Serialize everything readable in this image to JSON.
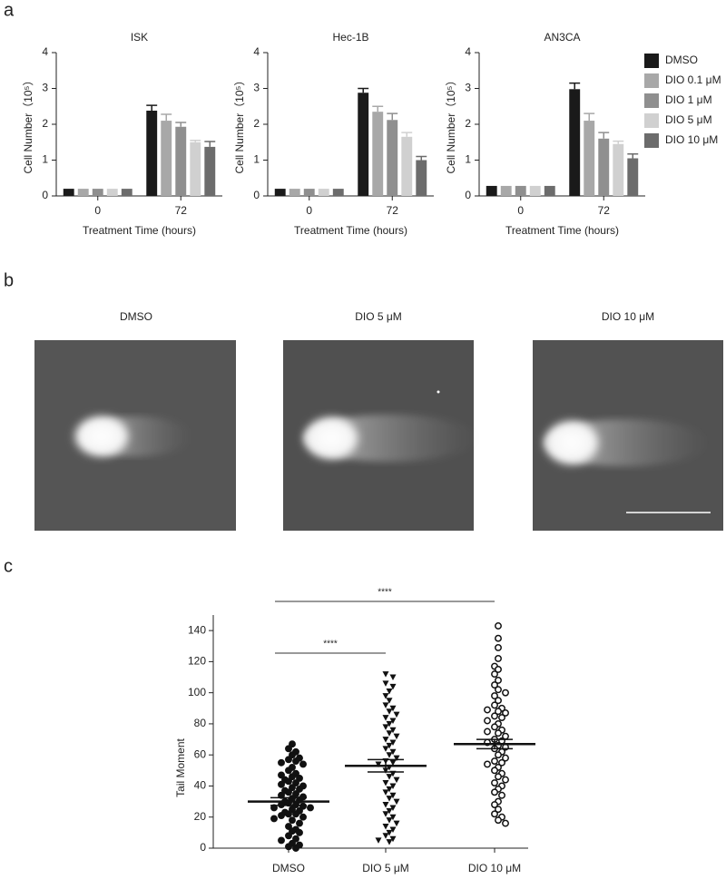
{
  "panel_labels": [
    "a",
    "b",
    "c"
  ],
  "legend": [
    {
      "name": "DMSO",
      "color": "#1a1a1a"
    },
    {
      "name": "DIO 0.1 μM",
      "color": "#a8a8a8"
    },
    {
      "name": "DIO 1 μM",
      "color": "#8f8f8f"
    },
    {
      "name": "DIO 5 μM",
      "color": "#d0d0d0"
    },
    {
      "name": "DIO 10 μM",
      "color": "#6c6c6c"
    }
  ],
  "chart_data": [
    {
      "type": "bar",
      "title": "ISK",
      "xlabel": "Treatment Time (hours)",
      "ylabel": "Cell Number（10⁵）",
      "categories": [
        "0",
        "72"
      ],
      "ylim": [
        0,
        4
      ],
      "yticks": [
        0,
        1,
        2,
        3,
        4
      ],
      "series": [
        {
          "values": [
            0.2,
            2.38
          ],
          "errors": [
            null,
            0.15
          ]
        },
        {
          "values": [
            0.2,
            2.1
          ],
          "errors": [
            null,
            0.18
          ]
        },
        {
          "values": [
            0.2,
            1.93
          ],
          "errors": [
            null,
            0.12
          ]
        },
        {
          "values": [
            0.2,
            1.5
          ],
          "errors": [
            null,
            0.05
          ]
        },
        {
          "values": [
            0.2,
            1.37
          ],
          "errors": [
            null,
            0.15
          ]
        }
      ]
    },
    {
      "type": "bar",
      "title": "Hec-1B",
      "xlabel": "Treatment Time (hours)",
      "ylabel": "Cell Number（10⁵）",
      "categories": [
        "0",
        "72"
      ],
      "ylim": [
        0,
        4
      ],
      "yticks": [
        0,
        1,
        2,
        3,
        4
      ],
      "series": [
        {
          "values": [
            0.2,
            2.88
          ],
          "errors": [
            null,
            0.12
          ]
        },
        {
          "values": [
            0.2,
            2.35
          ],
          "errors": [
            null,
            0.15
          ]
        },
        {
          "values": [
            0.2,
            2.12
          ],
          "errors": [
            null,
            0.18
          ]
        },
        {
          "values": [
            0.2,
            1.65
          ],
          "errors": [
            null,
            0.12
          ]
        },
        {
          "values": [
            0.2,
            1.0
          ],
          "errors": [
            null,
            0.1
          ]
        }
      ]
    },
    {
      "type": "bar",
      "title": "AN3CA",
      "xlabel": "Treatment Time (hours)",
      "ylabel": "Cell Number（10⁵）",
      "categories": [
        "0",
        "72"
      ],
      "ylim": [
        0,
        4
      ],
      "yticks": [
        0,
        1,
        2,
        3,
        4
      ],
      "series": [
        {
          "values": [
            0.28,
            2.98
          ],
          "errors": [
            null,
            0.17
          ]
        },
        {
          "values": [
            0.28,
            2.1
          ],
          "errors": [
            null,
            0.2
          ]
        },
        {
          "values": [
            0.28,
            1.6
          ],
          "errors": [
            null,
            0.17
          ]
        },
        {
          "values": [
            0.28,
            1.45
          ],
          "errors": [
            null,
            0.08
          ]
        },
        {
          "values": [
            0.28,
            1.05
          ],
          "errors": [
            null,
            0.12
          ]
        }
      ]
    },
    {
      "type": "dot",
      "ylabel": "Tail Moment",
      "categories": [
        "DMSO",
        "DIO 5 μM",
        "DIO 10 μM"
      ],
      "ylim": [
        0,
        150
      ],
      "yticks": [
        0,
        20,
        40,
        60,
        80,
        100,
        120,
        140
      ],
      "groups": [
        {
          "marker": "circle-filled",
          "mean": 30,
          "sem": 2.5,
          "values": [
            67,
            64,
            62,
            60,
            58,
            57,
            56,
            55,
            54,
            52,
            50,
            48,
            47,
            46,
            45,
            44,
            43,
            42,
            41,
            40,
            39,
            38,
            37,
            36,
            35,
            34,
            33,
            32,
            31,
            30,
            29,
            28,
            28,
            27,
            26,
            26,
            25,
            24,
            23,
            22,
            22,
            21,
            20,
            19,
            18,
            16,
            14,
            12,
            11,
            10,
            8,
            6,
            5,
            3,
            2,
            1,
            0
          ]
        },
        {
          "marker": "triangle-down",
          "mean": 53,
          "sem": 4,
          "values": [
            112,
            110,
            106,
            104,
            101,
            98,
            95,
            92,
            90,
            88,
            86,
            84,
            82,
            80,
            78,
            76,
            74,
            72,
            70,
            68,
            66,
            64,
            62,
            60,
            58,
            56,
            55,
            54,
            52,
            50,
            48,
            46,
            44,
            42,
            40,
            38,
            36,
            34,
            32,
            30,
            28,
            26,
            24,
            22,
            20,
            18,
            16,
            14,
            12,
            10,
            8,
            6,
            5,
            4
          ]
        },
        {
          "marker": "circle-open",
          "mean": 67,
          "sem": 3,
          "values": [
            143,
            135,
            129,
            122,
            117,
            115,
            112,
            108,
            105,
            102,
            100,
            98,
            95,
            92,
            90,
            89,
            88,
            87,
            85,
            84,
            82,
            80,
            78,
            76,
            75,
            74,
            72,
            70,
            69,
            68,
            66,
            65,
            64,
            62,
            60,
            58,
            56,
            55,
            54,
            52,
            50,
            48,
            46,
            44,
            42,
            40,
            38,
            36,
            34,
            30,
            28,
            25,
            22,
            20,
            18,
            16
          ]
        }
      ],
      "significance": [
        {
          "from": 0,
          "to": 1,
          "label": "****"
        },
        {
          "from": 0,
          "to": 2,
          "label": "****"
        }
      ]
    }
  ],
  "comet_images": {
    "titles": [
      "DMSO",
      "DIO 5 μM",
      "DIO 10 μM"
    ]
  }
}
